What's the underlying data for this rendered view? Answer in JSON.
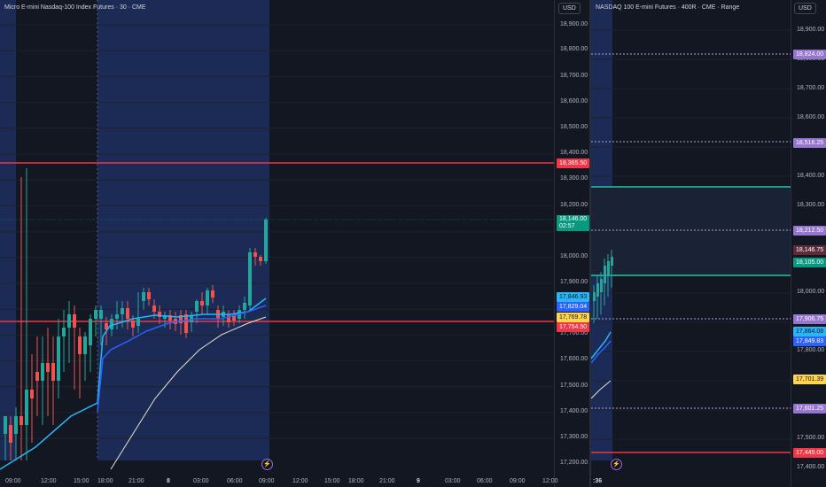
{
  "left_chart": {
    "title": "Micro E-mini Nasdaq-100 Index Futures · 30 · CME",
    "currency": "USD",
    "y_axis": [
      "18,900.00",
      "18,800.00",
      "18,700.00",
      "18,600.00",
      "18,500.00",
      "18,400.00",
      "18,300.00",
      "18,200.00",
      "18,000.00",
      "17,900.00",
      "17,700.00",
      "17,600.00",
      "17,500.00",
      "17,400.00",
      "17,300.00",
      "17,200.00"
    ],
    "x_axis": [
      "09:00",
      "12:00",
      "15:00",
      "18:00",
      "21:00",
      "8",
      "03:00",
      "06:00",
      "09:00",
      "12:00",
      "15:00",
      "18:00",
      "21:00",
      "9",
      "03:00",
      "06:00",
      "09:00",
      "12:00"
    ],
    "price_tags": {
      "resistance": "18,365.50",
      "last_price": "18,146.00",
      "countdown": "02:57",
      "ema_fast": "17,846.93",
      "ema_mid": "17,829.04",
      "yellow": "17,769.78",
      "support": "17,754.50"
    },
    "colors": {
      "up": "#26a69a",
      "down": "#ef5350",
      "resistance": "#f23645",
      "ema_fast": "#29b6f6",
      "ema_mid": "#2962ff",
      "ema_slow": "#e8e2c8",
      "session": "#1c2b55"
    },
    "flash_icon": "lightning-icon"
  },
  "right_chart": {
    "title": "NASDAQ 100 E-mini Futures · 400R · CME · Range",
    "currency": "USD",
    "y_axis": [
      "18,900.00",
      "18,800.00",
      "18,700.00",
      "18,600.00",
      "18,400.00",
      "18,300.00",
      "18,000.00",
      "17,800.00",
      "17,600.00",
      "17,500.00",
      "17,400.00"
    ],
    "x_axis": [
      ":36"
    ],
    "price_tags": {
      "purple_1": "18,824.00",
      "purple_2": "18,516.25",
      "purple_3": "18,212.50",
      "last_price": "18,146.75",
      "green": "18,105.00",
      "purple_4": "17,906.75",
      "ema_fast": "17,864.08",
      "ema_mid": "17,849.83",
      "yellow": "17,701.39",
      "purple_5": "17,601.25",
      "red": "17,449.00"
    },
    "flash_icon": "lightning-icon"
  }
}
